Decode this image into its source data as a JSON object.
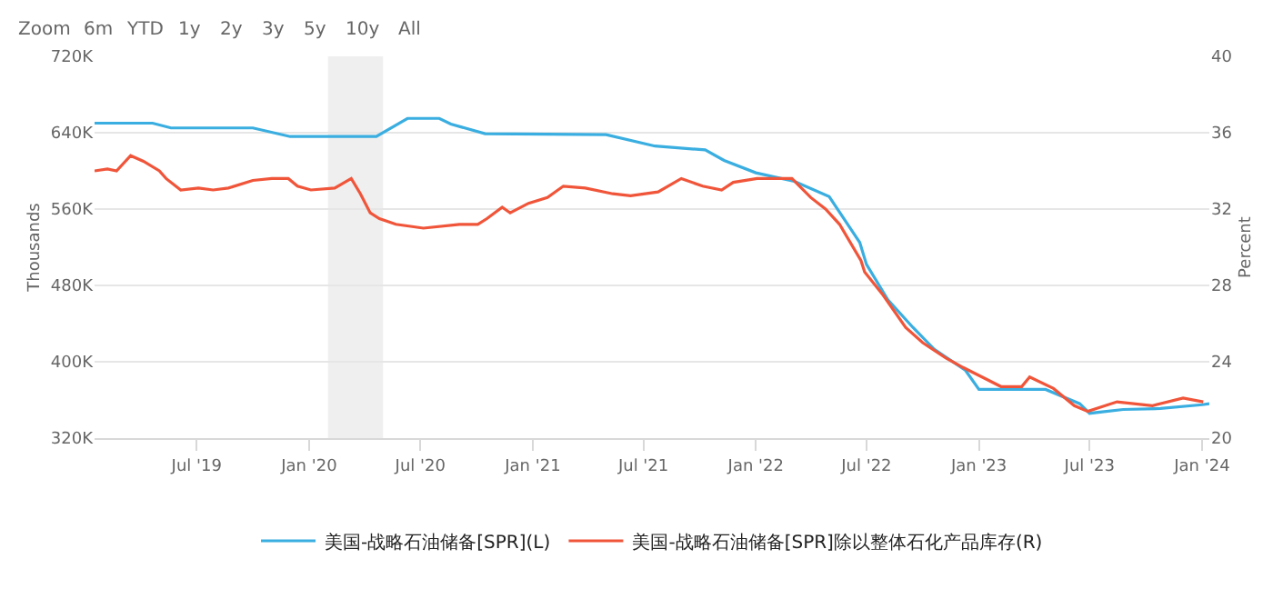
{
  "chart_data": {
    "type": "line",
    "annotations": [
      "Zoom",
      "6m",
      "YTD",
      "1y",
      "2y",
      "3y",
      "5y",
      "10y",
      "All"
    ],
    "ylabel": "Thousands",
    "y2label": "Percent",
    "xlim": [
      "2019-01-15",
      "2024-01-13"
    ],
    "xticks": [
      {
        "value": "2019-07-01",
        "label": "Jul '19"
      },
      {
        "value": "2020-01-01",
        "label": "Jan '20"
      },
      {
        "value": "2020-07-01",
        "label": "Jul '20"
      },
      {
        "value": "2021-01-01",
        "label": "Jan '21"
      },
      {
        "value": "2021-07-01",
        "label": "Jul '21"
      },
      {
        "value": "2022-01-01",
        "label": "Jan '22"
      },
      {
        "value": "2022-07-01",
        "label": "Jul '22"
      },
      {
        "value": "2023-01-01",
        "label": "Jan '23"
      },
      {
        "value": "2023-07-01",
        "label": "Jul '23"
      },
      {
        "value": "2024-01-01",
        "label": "Jan '24"
      }
    ],
    "ylim": [
      320,
      720
    ],
    "yticks": [
      {
        "value": 320,
        "label": "320K"
      },
      {
        "value": 400,
        "label": "400K"
      },
      {
        "value": 480,
        "label": "480K"
      },
      {
        "value": 560,
        "label": "560K"
      },
      {
        "value": 640,
        "label": "640K"
      },
      {
        "value": 720,
        "label": "720K"
      }
    ],
    "y2lim": [
      20,
      40
    ],
    "y2ticks": [
      20,
      24,
      28,
      32,
      36,
      40
    ],
    "grid": "y",
    "legend": "bottom",
    "marker": "none",
    "line_style": "solid",
    "bands": [
      {
        "axis": "x",
        "from": "2020-02-01",
        "to": "2020-05-01",
        "color": "#efefef"
      }
    ],
    "series": [
      {
        "name": "美国-战略石油储备[SPR](L)",
        "color": "#3aaee0",
        "x": [
          "2019-01-15",
          "2019-04-20",
          "2019-05-20",
          "2019-10-01",
          "2019-12-01",
          "2020-04-20",
          "2020-06-10",
          "2020-08-01",
          "2020-08-20",
          "2020-10-15",
          "2021-05-01",
          "2021-07-20",
          "2021-10-10",
          "2021-11-10",
          "2022-01-01",
          "2022-03-05",
          "2022-05-01",
          "2022-06-20",
          "2022-07-01",
          "2022-08-05",
          "2022-09-15",
          "2022-10-20",
          "2022-12-10",
          "2023-01-01",
          "2023-04-20",
          "2023-06-15",
          "2023-07-01",
          "2023-08-25",
          "2023-10-25",
          "2024-01-01",
          "2024-01-13"
        ],
        "values": [
          650,
          650,
          645,
          645,
          636,
          636,
          655,
          655,
          649,
          639,
          638,
          626,
          622,
          611,
          598,
          589,
          573,
          525,
          502,
          465,
          436,
          413,
          391,
          371,
          371,
          356,
          346,
          350,
          351,
          355,
          356
        ]
      },
      {
        "name": "美国-战略石油储备[SPR]除以整体石化产品库存(R)",
        "color": "#f0553a",
        "axis": "y2",
        "x": [
          "2019-01-15",
          "2019-02-05",
          "2019-02-20",
          "2019-03-15",
          "2019-04-05",
          "2019-05-01",
          "2019-05-12",
          "2019-06-05",
          "2019-07-04",
          "2019-07-28",
          "2019-08-22",
          "2019-10-01",
          "2019-11-01",
          "2019-11-28",
          "2019-12-13",
          "2020-01-04",
          "2020-02-12",
          "2020-03-10",
          "2020-03-25",
          "2020-04-10",
          "2020-04-25",
          "2020-05-22",
          "2020-07-06",
          "2020-09-03",
          "2020-10-03",
          "2020-10-18",
          "2020-11-12",
          "2020-11-25",
          "2020-12-25",
          "2021-01-25",
          "2021-02-20",
          "2021-03-28",
          "2021-05-12",
          "2021-06-10",
          "2021-07-25",
          "2021-09-01",
          "2021-10-06",
          "2021-11-06",
          "2021-11-25",
          "2022-01-03",
          "2022-03-01",
          "2022-04-01",
          "2022-04-25",
          "2022-05-18",
          "2022-06-22",
          "2022-06-28",
          "2022-07-28",
          "2022-09-03",
          "2022-10-01",
          "2022-11-08",
          "2022-12-06",
          "2023-01-06",
          "2023-02-06",
          "2023-03-12",
          "2023-03-25",
          "2023-05-03",
          "2023-06-06",
          "2023-06-28",
          "2023-08-15",
          "2023-10-12",
          "2023-12-01",
          "2024-01-03"
        ],
        "values": [
          34.0,
          34.1,
          34.0,
          34.8,
          34.5,
          34.0,
          33.6,
          33.0,
          33.1,
          33.0,
          33.1,
          33.5,
          33.6,
          33.6,
          33.2,
          33.0,
          33.1,
          33.6,
          32.8,
          31.8,
          31.5,
          31.2,
          31.0,
          31.2,
          31.2,
          31.5,
          32.1,
          31.8,
          32.3,
          32.6,
          33.2,
          33.1,
          32.8,
          32.7,
          32.9,
          33.6,
          33.2,
          33.0,
          33.4,
          33.6,
          33.6,
          32.6,
          32.0,
          31.2,
          29.3,
          28.7,
          27.5,
          25.8,
          25.0,
          24.2,
          23.7,
          23.2,
          22.7,
          22.7,
          23.2,
          22.6,
          21.7,
          21.4,
          21.9,
          21.7,
          22.1,
          21.9
        ]
      }
    ]
  }
}
